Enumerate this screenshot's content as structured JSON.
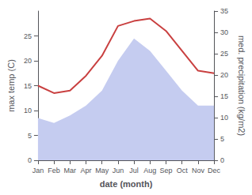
{
  "chart_data": {
    "type": "line",
    "xlabel": "date (month)",
    "ylabel": "max temp (C)",
    "y2label": "med. precipitation (kg/m2)",
    "categories": [
      "Jan",
      "Feb",
      "Mar",
      "Apr",
      "May",
      "Jun",
      "Jul",
      "Aug",
      "Sep",
      "Oct",
      "Nov",
      "Dec"
    ],
    "series": [
      {
        "type": "area",
        "color": "#c5ccf0",
        "values": [
          8.5,
          7.5,
          9,
          11,
          14,
          20,
          24.5,
          22,
          18,
          14,
          11,
          11
        ]
      },
      {
        "type": "line",
        "color": "#c94040",
        "values": [
          15,
          13.5,
          14,
          17,
          21,
          27,
          28,
          28.5,
          26,
          22,
          18,
          17.5
        ]
      }
    ],
    "ylim": [
      0,
      30
    ],
    "yticks": [
      0,
      5,
      10,
      15,
      20,
      25
    ],
    "y2lim": [
      0,
      35
    ],
    "y2ticks": [
      0,
      5,
      10,
      15,
      20,
      25,
      30,
      35
    ],
    "grid": false
  }
}
